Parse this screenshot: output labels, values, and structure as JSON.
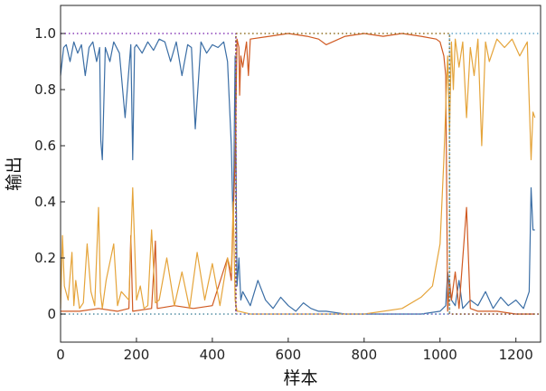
{
  "chart_data": {
    "type": "line",
    "xlabel": "样本",
    "ylabel": "输出",
    "xlim": [
      0,
      1265
    ],
    "ylim": [
      -0.1,
      1.1
    ],
    "x_ticks": [
      0,
      200,
      400,
      600,
      800,
      1000,
      1200
    ],
    "y_ticks": [
      0,
      0.2,
      0.4,
      0.6,
      0.8,
      1.0
    ],
    "x_tick_labels": [
      "0",
      "200",
      "400",
      "600",
      "800",
      "1000",
      "1200"
    ],
    "y_tick_labels": [
      "0",
      "0.2",
      "0.4",
      "0.6",
      "0.8",
      "1.0"
    ],
    "grid": false,
    "series": [
      {
        "color": "#3b6ea5",
        "x": [
          0,
          8,
          15,
          25,
          35,
          45,
          55,
          65,
          75,
          85,
          95,
          103,
          106,
          110,
          118,
          130,
          140,
          155,
          170,
          185,
          190,
          195,
          200,
          215,
          230,
          245,
          260,
          275,
          290,
          305,
          320,
          335,
          345,
          355,
          370,
          385,
          400,
          415,
          430,
          440,
          450,
          455,
          460,
          465,
          470,
          475,
          480,
          500,
          520,
          540,
          560,
          580,
          600,
          620,
          640,
          660,
          680,
          700,
          750,
          800,
          850,
          900,
          950,
          1000,
          1015,
          1020,
          1025,
          1030,
          1040,
          1050,
          1060,
          1080,
          1100,
          1120,
          1140,
          1160,
          1180,
          1200,
          1220,
          1235,
          1240,
          1245,
          1250
        ],
        "values": [
          0.85,
          0.95,
          0.96,
          0.9,
          0.97,
          0.93,
          0.96,
          0.85,
          0.95,
          0.97,
          0.9,
          0.95,
          0.62,
          0.55,
          0.95,
          0.9,
          0.97,
          0.93,
          0.7,
          0.96,
          0.55,
          0.95,
          0.96,
          0.93,
          0.97,
          0.94,
          0.98,
          0.97,
          0.9,
          0.97,
          0.85,
          0.96,
          0.95,
          0.66,
          0.97,
          0.93,
          0.96,
          0.95,
          0.97,
          0.9,
          0.6,
          0.3,
          0.92,
          0.1,
          0.2,
          0.05,
          0.08,
          0.03,
          0.12,
          0.05,
          0.02,
          0.06,
          0.03,
          0.01,
          0.04,
          0.02,
          0.01,
          0.01,
          0.0,
          0.0,
          0.0,
          0.0,
          0.0,
          0.01,
          0.03,
          0.15,
          0.08,
          0.05,
          0.03,
          0.12,
          0.02,
          0.05,
          0.03,
          0.08,
          0.02,
          0.06,
          0.03,
          0.05,
          0.02,
          0.08,
          0.45,
          0.3,
          0.3
        ]
      },
      {
        "color": "#d05a22",
        "x": [
          0,
          50,
          100,
          150,
          180,
          185,
          190,
          240,
          250,
          255,
          300,
          350,
          400,
          440,
          450,
          455,
          460,
          465,
          470,
          472,
          475,
          480,
          490,
          495,
          500,
          550,
          600,
          650,
          680,
          700,
          750,
          800,
          850,
          900,
          950,
          990,
          1000,
          1010,
          1015,
          1020,
          1025,
          1030,
          1040,
          1050,
          1070,
          1080,
          1100,
          1150,
          1200,
          1250
        ],
        "values": [
          0.01,
          0.01,
          0.02,
          0.01,
          0.02,
          0.28,
          0.01,
          0.02,
          0.26,
          0.02,
          0.03,
          0.02,
          0.03,
          0.2,
          0.12,
          0.35,
          0.55,
          0.98,
          0.95,
          0.78,
          0.92,
          0.88,
          0.97,
          0.85,
          0.98,
          0.99,
          1.0,
          0.99,
          0.98,
          0.96,
          0.99,
          1.0,
          0.99,
          1.0,
          0.99,
          0.98,
          0.97,
          0.92,
          0.85,
          0.01,
          0.12,
          0.05,
          0.15,
          0.02,
          0.38,
          0.02,
          0.01,
          0.01,
          0.0,
          0.0
        ]
      },
      {
        "color": "#e5a43a",
        "x": [
          0,
          5,
          10,
          20,
          30,
          35,
          40,
          50,
          60,
          70,
          80,
          90,
          100,
          105,
          110,
          120,
          140,
          150,
          160,
          180,
          190,
          200,
          210,
          220,
          230,
          240,
          250,
          260,
          280,
          300,
          320,
          340,
          360,
          380,
          400,
          420,
          440,
          450,
          455,
          460,
          465,
          470,
          500,
          550,
          600,
          700,
          800,
          900,
          950,
          980,
          1000,
          1010,
          1020,
          1025,
          1030,
          1035,
          1040,
          1050,
          1060,
          1070,
          1080,
          1090,
          1100,
          1110,
          1120,
          1130,
          1150,
          1170,
          1190,
          1210,
          1230,
          1240,
          1245,
          1250
        ],
        "values": [
          0.02,
          0.28,
          0.1,
          0.05,
          0.22,
          0.03,
          0.12,
          0.02,
          0.04,
          0.25,
          0.08,
          0.03,
          0.38,
          0.08,
          0.02,
          0.12,
          0.25,
          0.03,
          0.08,
          0.05,
          0.45,
          0.05,
          0.1,
          0.02,
          0.03,
          0.3,
          0.04,
          0.05,
          0.2,
          0.03,
          0.15,
          0.02,
          0.22,
          0.05,
          0.18,
          0.03,
          0.2,
          0.15,
          0.4,
          0.05,
          0.01,
          0.01,
          0.0,
          0.0,
          0.0,
          0.0,
          0.0,
          0.02,
          0.06,
          0.1,
          0.25,
          0.55,
          0.92,
          0.65,
          0.97,
          0.8,
          0.98,
          0.88,
          0.97,
          0.7,
          0.95,
          0.85,
          0.98,
          0.6,
          0.97,
          0.9,
          0.98,
          0.95,
          0.98,
          0.92,
          0.97,
          0.55,
          0.72,
          0.7
        ]
      },
      {
        "color": "#8a3fb8",
        "dashed": true,
        "x": [
          0,
          462,
          462.1,
          1265
        ],
        "values": [
          1.0,
          1.0,
          0.0,
          0.0
        ]
      },
      {
        "color": "#8d6d1f",
        "dashed": true,
        "x": [
          0,
          462,
          462.1,
          1025,
          1025.1,
          1265
        ],
        "values": [
          0.0,
          0.0,
          1.0,
          1.0,
          0.0,
          0.0
        ]
      },
      {
        "color": "#66a7c9",
        "dashed": true,
        "x": [
          0,
          1025,
          1025.1,
          1265
        ],
        "values": [
          0.0,
          0.0,
          1.0,
          1.0
        ]
      }
    ]
  }
}
